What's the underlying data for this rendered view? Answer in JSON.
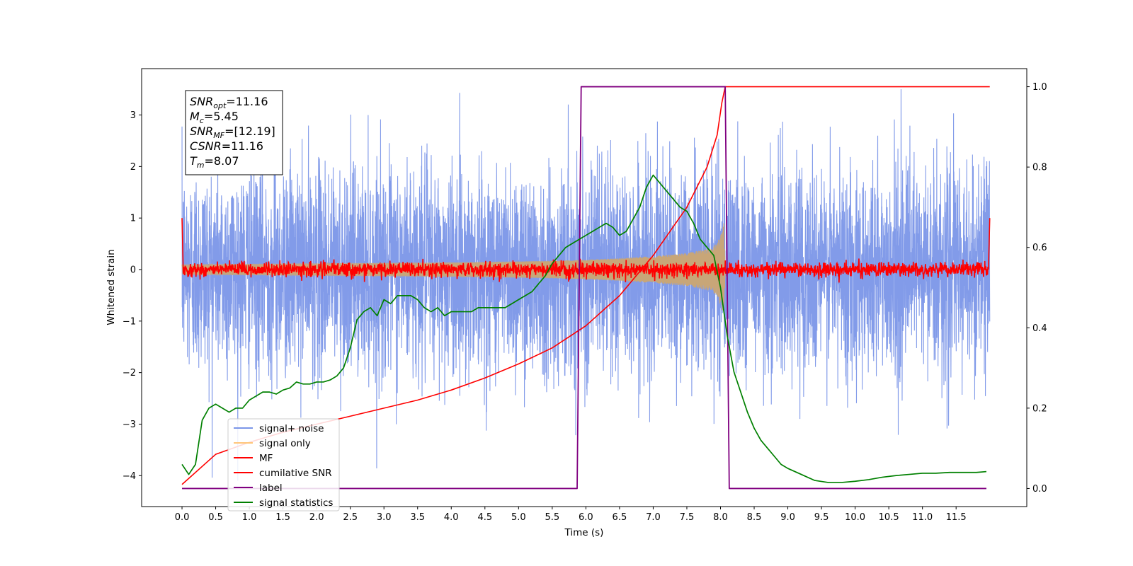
{
  "chart_data": {
    "type": "line",
    "xlabel": "Time (s)",
    "ylabel": "Whitened strain",
    "xlim": [
      -0.6,
      12.55
    ],
    "ylim": [
      -4.6,
      3.9
    ],
    "y2lim": [
      -0.045,
      1.045
    ],
    "x_ticks": [
      "0.0",
      "0.5",
      "1.0",
      "1.5",
      "2.0",
      "2.5",
      "3.0",
      "3.5",
      "4.0",
      "4.5",
      "5.0",
      "5.5",
      "6.0",
      "6.5",
      "7.0",
      "7.5",
      "8.0",
      "8.5",
      "9.0",
      "9.5",
      "10.0",
      "10.5",
      "11.0",
      "11.5"
    ],
    "y_ticks": [
      "3",
      "2",
      "1",
      "0",
      "−1",
      "−2",
      "−3",
      "−4"
    ],
    "y2_ticks": [
      "1.0",
      "0.8",
      "0.6",
      "0.4",
      "0.2",
      "0.0"
    ],
    "grid": false,
    "legend_position": "lower-left",
    "legend": [
      "signal+ noise",
      "signal only",
      "MF",
      "cumilative SNR",
      "label",
      "signal statistics"
    ],
    "stats": [
      {
        "main": "SNR",
        "sub": "opt",
        "value": "=11.16"
      },
      {
        "main": "M",
        "sub": "c",
        "value": "=5.45"
      },
      {
        "main": "SNR",
        "sub": "MF",
        "value": "=[12.19]"
      },
      {
        "main": "CSNR",
        "sub": "",
        "value": "=11.16"
      },
      {
        "main": "T",
        "sub": "m",
        "value": "=8.07"
      }
    ],
    "series": [
      {
        "name": "signal+ noise",
        "axis": "left",
        "color": "#7b96e8",
        "style": "noise",
        "x_range": [
          0.0,
          12.0
        ],
        "std": 1.0,
        "min": -4.1,
        "max": 3.5
      },
      {
        "name": "signal only",
        "axis": "left",
        "color": "#c8a678",
        "style": "chirp",
        "x": [
          0.0,
          1.0,
          2.0,
          3.0,
          4.0,
          5.0,
          5.5,
          6.0,
          6.5,
          7.0,
          7.5,
          7.8,
          7.95,
          8.05,
          8.07
        ],
        "amplitude": [
          0.1,
          0.11,
          0.12,
          0.13,
          0.14,
          0.16,
          0.17,
          0.19,
          0.22,
          0.26,
          0.32,
          0.4,
          0.5,
          0.9,
          0.0
        ]
      },
      {
        "name": "MF",
        "axis": "left",
        "color": "#ff0000",
        "style": "mf",
        "x_range": [
          0.0,
          12.0
        ],
        "std": 0.07,
        "edge_value": 1.0
      },
      {
        "name": "cumilative SNR",
        "axis": "right",
        "color": "#ff0000",
        "style": "line",
        "x": [
          0.0,
          0.5,
          1.0,
          1.5,
          2.0,
          2.5,
          3.0,
          3.5,
          4.0,
          4.5,
          5.0,
          5.5,
          6.0,
          6.5,
          7.0,
          7.5,
          7.8,
          7.95,
          8.02,
          8.07,
          12.0
        ],
        "y": [
          0.01,
          0.085,
          0.115,
          0.14,
          0.16,
          0.18,
          0.2,
          0.22,
          0.245,
          0.275,
          0.31,
          0.35,
          0.405,
          0.48,
          0.58,
          0.7,
          0.8,
          0.88,
          0.96,
          1.0,
          1.0
        ]
      },
      {
        "name": "label",
        "axis": "right",
        "color": "#800080",
        "style": "line",
        "x": [
          0.0,
          5.87,
          5.93,
          8.07,
          8.13,
          11.95
        ],
        "y": [
          0.0,
          0.0,
          1.0,
          1.0,
          0.0,
          0.0
        ]
      },
      {
        "name": "signal statistics",
        "axis": "right",
        "color": "#008000",
        "style": "line",
        "x": [
          0.0,
          0.1,
          0.2,
          0.3,
          0.4,
          0.5,
          0.6,
          0.7,
          0.8,
          0.9,
          1.0,
          1.1,
          1.2,
          1.3,
          1.4,
          1.5,
          1.6,
          1.7,
          1.8,
          1.9,
          2.0,
          2.1,
          2.2,
          2.3,
          2.4,
          2.5,
          2.6,
          2.7,
          2.8,
          2.9,
          3.0,
          3.1,
          3.2,
          3.3,
          3.4,
          3.5,
          3.6,
          3.7,
          3.8,
          3.9,
          4.0,
          4.1,
          4.2,
          4.3,
          4.4,
          4.5,
          4.6,
          4.7,
          4.8,
          4.9,
          5.0,
          5.1,
          5.2,
          5.3,
          5.4,
          5.5,
          5.6,
          5.7,
          5.8,
          5.9,
          6.0,
          6.1,
          6.2,
          6.3,
          6.4,
          6.5,
          6.6,
          6.7,
          6.8,
          6.9,
          7.0,
          7.1,
          7.2,
          7.3,
          7.4,
          7.5,
          7.6,
          7.7,
          7.8,
          7.9,
          8.0,
          8.1,
          8.2,
          8.3,
          8.4,
          8.5,
          8.6,
          8.7,
          8.8,
          8.9,
          9.0,
          9.2,
          9.4,
          9.6,
          9.8,
          10.0,
          10.2,
          10.4,
          10.6,
          10.8,
          11.0,
          11.2,
          11.4,
          11.6,
          11.8,
          11.95
        ],
        "y": [
          0.06,
          0.035,
          0.06,
          0.17,
          0.2,
          0.21,
          0.2,
          0.19,
          0.2,
          0.2,
          0.22,
          0.23,
          0.24,
          0.24,
          0.235,
          0.245,
          0.25,
          0.265,
          0.26,
          0.26,
          0.265,
          0.265,
          0.27,
          0.28,
          0.3,
          0.35,
          0.42,
          0.44,
          0.45,
          0.43,
          0.47,
          0.46,
          0.48,
          0.48,
          0.48,
          0.47,
          0.45,
          0.44,
          0.45,
          0.43,
          0.44,
          0.44,
          0.44,
          0.44,
          0.45,
          0.45,
          0.45,
          0.45,
          0.45,
          0.46,
          0.47,
          0.48,
          0.49,
          0.51,
          0.53,
          0.56,
          0.58,
          0.6,
          0.61,
          0.62,
          0.63,
          0.64,
          0.65,
          0.66,
          0.65,
          0.63,
          0.64,
          0.67,
          0.7,
          0.75,
          0.78,
          0.76,
          0.74,
          0.72,
          0.7,
          0.69,
          0.66,
          0.62,
          0.6,
          0.58,
          0.5,
          0.38,
          0.29,
          0.24,
          0.19,
          0.15,
          0.12,
          0.1,
          0.08,
          0.06,
          0.05,
          0.035,
          0.02,
          0.015,
          0.015,
          0.018,
          0.022,
          0.028,
          0.032,
          0.035,
          0.038,
          0.038,
          0.04,
          0.04,
          0.04,
          0.042
        ]
      }
    ]
  }
}
